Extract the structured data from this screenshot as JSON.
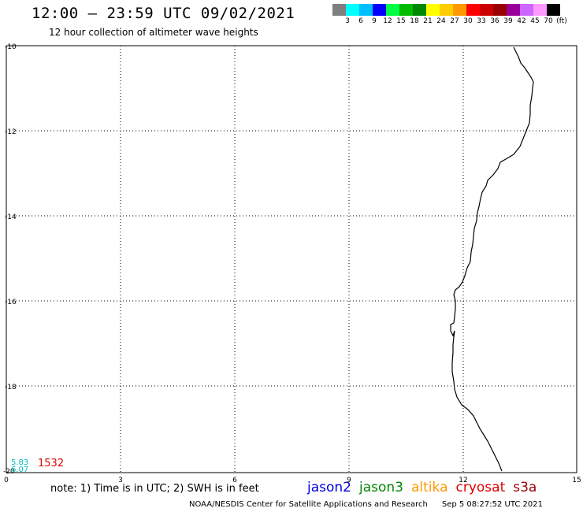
{
  "title": "12:00 – 23:59 UTC 09/02/2021",
  "subtitle": "12 hour collection of altimeter wave heights",
  "legend": {
    "colors": [
      "#7f7f7f",
      "#00ffff",
      "#00bfff",
      "#0000ff",
      "#00ff44",
      "#00bb00",
      "#008800",
      "#ffff00",
      "#ffcc00",
      "#ff9900",
      "#ff0000",
      "#cc0000",
      "#990000",
      "#990099",
      "#cc66ff",
      "#ff99ff",
      "#000000"
    ],
    "labels": [
      "3",
      "6",
      "9",
      "12",
      "15",
      "18",
      "21",
      "24",
      "27",
      "30",
      "33",
      "36",
      "39",
      "42",
      "45",
      "70",
      "(ft)"
    ]
  },
  "axes": {
    "x_ticks": [
      "0",
      "3",
      "6",
      "9",
      "12",
      "15"
    ],
    "y_ticks": [
      "-10",
      "-12",
      "-14",
      "-16",
      "-18",
      "-20"
    ]
  },
  "observations": {
    "wave_1": "5.83",
    "wave_2": "6.07",
    "pass_time": "1532"
  },
  "note": "note: 1) Time is in UTC; 2) SWH is in feet",
  "satellites": [
    {
      "name": "jason2",
      "color": "#0000dd"
    },
    {
      "name": "jason3",
      "color": "#008800"
    },
    {
      "name": "altika",
      "color": "#ff9900"
    },
    {
      "name": "cryosat",
      "color": "#dd0000"
    },
    {
      "name": "s3a",
      "color": "#990000"
    }
  ],
  "credit": "NOAA/NESDIS Center for Satellite Applications and Research",
  "timestamp": "Sep  5 08:27:52 UTC 2021"
}
